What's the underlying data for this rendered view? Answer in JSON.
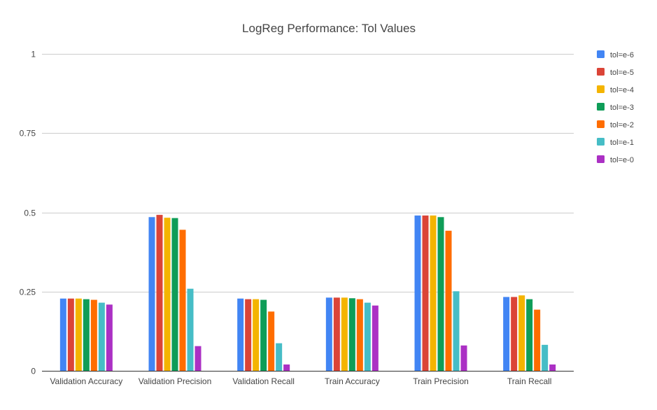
{
  "chart_data": {
    "type": "bar",
    "title": "LogReg Performance: Tol Values",
    "xlabel": "",
    "ylabel": "",
    "ylim": [
      0,
      1
    ],
    "yticks": [
      0,
      0.25,
      0.5,
      0.75,
      1
    ],
    "ytick_labels": [
      "0",
      "0.25",
      "0.5",
      "0.75",
      "1"
    ],
    "grid": true,
    "legend_position": "right",
    "categories": [
      "Validation Accuracy",
      "Validation Precision",
      "Validation Recall",
      "Train Accuracy",
      "Train Precision",
      "Train Recall"
    ],
    "series": [
      {
        "name": "tol=e-6",
        "color": "#4285f4",
        "values": [
          0.228,
          0.485,
          0.228,
          0.231,
          0.49,
          0.233
        ]
      },
      {
        "name": "tol=e-5",
        "color": "#db4437",
        "values": [
          0.228,
          0.492,
          0.226,
          0.231,
          0.49,
          0.233
        ]
      },
      {
        "name": "tol=e-4",
        "color": "#f4b400",
        "values": [
          0.228,
          0.483,
          0.226,
          0.231,
          0.49,
          0.238
        ]
      },
      {
        "name": "tol=e-3",
        "color": "#0f9d58",
        "values": [
          0.226,
          0.482,
          0.224,
          0.229,
          0.485,
          0.226
        ]
      },
      {
        "name": "tol=e-2",
        "color": "#ff6d00",
        "values": [
          0.224,
          0.445,
          0.187,
          0.226,
          0.442,
          0.193
        ]
      },
      {
        "name": "tol=e-1",
        "color": "#46bdc6",
        "values": [
          0.215,
          0.259,
          0.087,
          0.215,
          0.251,
          0.082
        ]
      },
      {
        "name": "tol=e-0",
        "color": "#ab30c4",
        "values": [
          0.209,
          0.078,
          0.02,
          0.206,
          0.08,
          0.02
        ]
      }
    ]
  }
}
